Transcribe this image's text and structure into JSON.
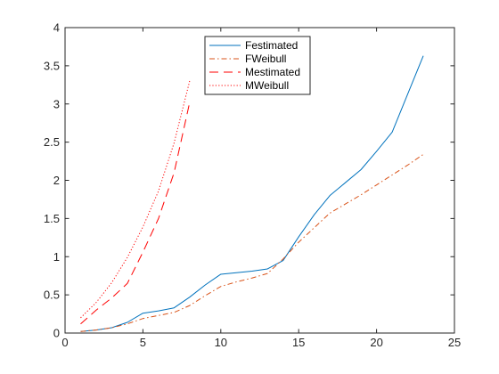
{
  "chart_data": {
    "type": "line",
    "title": "",
    "xlabel": "",
    "ylabel": "",
    "xlim": [
      0,
      25
    ],
    "ylim": [
      0,
      4
    ],
    "xticks": [
      0,
      5,
      10,
      15,
      20,
      25
    ],
    "yticks": [
      0,
      0.5,
      1,
      1.5,
      2,
      2.5,
      3,
      3.5,
      4
    ],
    "xtick_labels": [
      "0",
      "5",
      "10",
      "15",
      "20",
      "25"
    ],
    "ytick_labels": [
      "0",
      "0.5",
      "1",
      "1.5",
      "2",
      "2.5",
      "3",
      "3.5",
      "4"
    ],
    "grid": false,
    "legend_position": "top-center",
    "series": [
      {
        "name": "Festimated",
        "color": "#0072BD",
        "style": "solid",
        "points": [
          [
            1,
            0.02
          ],
          [
            2,
            0.04
          ],
          [
            3,
            0.07
          ],
          [
            4,
            0.14
          ],
          [
            5,
            0.26
          ],
          [
            6,
            0.29
          ],
          [
            7,
            0.33
          ],
          [
            8,
            0.47
          ],
          [
            9,
            0.63
          ],
          [
            10,
            0.77
          ],
          [
            11,
            0.79
          ],
          [
            12,
            0.81
          ],
          [
            13,
            0.84
          ],
          [
            14,
            0.95
          ],
          [
            15,
            1.26
          ],
          [
            16,
            1.55
          ],
          [
            17,
            1.8
          ],
          [
            18,
            1.97
          ],
          [
            19,
            2.14
          ],
          [
            20,
            2.38
          ],
          [
            21,
            2.63
          ],
          [
            22,
            3.13
          ],
          [
            23,
            3.63
          ]
        ]
      },
      {
        "name": "FWeibull",
        "color": "#D95319",
        "style": "dashdot",
        "points": [
          [
            1,
            0.02
          ],
          [
            2,
            0.04
          ],
          [
            3,
            0.07
          ],
          [
            4,
            0.12
          ],
          [
            5,
            0.19
          ],
          [
            6,
            0.23
          ],
          [
            7,
            0.27
          ],
          [
            8,
            0.36
          ],
          [
            9,
            0.49
          ],
          [
            10,
            0.61
          ],
          [
            11,
            0.67
          ],
          [
            12,
            0.72
          ],
          [
            13,
            0.78
          ],
          [
            14,
            0.97
          ],
          [
            15,
            1.19
          ],
          [
            16,
            1.38
          ],
          [
            17,
            1.57
          ],
          [
            18,
            1.69
          ],
          [
            19,
            1.81
          ],
          [
            20,
            1.94
          ],
          [
            21,
            2.07
          ],
          [
            22,
            2.2
          ],
          [
            23,
            2.34
          ]
        ]
      },
      {
        "name": "Mestimated",
        "color": "#FF0000",
        "style": "dashed",
        "points": [
          [
            1,
            0.12
          ],
          [
            2,
            0.3
          ],
          [
            3,
            0.46
          ],
          [
            4,
            0.65
          ],
          [
            5,
            1.06
          ],
          [
            6,
            1.5
          ],
          [
            7,
            2.1
          ],
          [
            8,
            3.02
          ]
        ]
      },
      {
        "name": "MWeibull",
        "color": "#FF0000",
        "style": "dotted",
        "points": [
          [
            1,
            0.2
          ],
          [
            2,
            0.4
          ],
          [
            3,
            0.66
          ],
          [
            4,
            0.99
          ],
          [
            5,
            1.39
          ],
          [
            6,
            1.86
          ],
          [
            7,
            2.49
          ],
          [
            8,
            3.3
          ]
        ]
      }
    ]
  }
}
